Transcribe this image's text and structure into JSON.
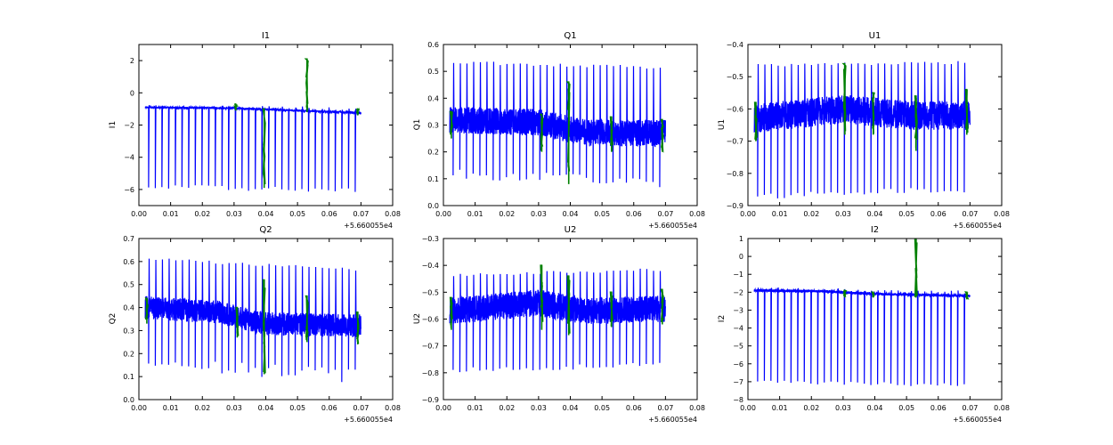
{
  "chart_data": [
    {
      "type": "line",
      "title": "I1",
      "ylabel": "I1",
      "xlabel": "",
      "x_offset_label": "+5.660055e4",
      "xlim": [
        0.0,
        0.08
      ],
      "ylim": [
        -7,
        3
      ],
      "x_ticks": [
        0.0,
        0.01,
        0.02,
        0.03,
        0.04,
        0.05,
        0.06,
        0.07,
        0.08
      ],
      "x_tick_labels": [
        "0.00",
        "0.01",
        "0.02",
        "0.03",
        "0.04",
        "0.05",
        "0.06",
        "0.07",
        "0.08"
      ],
      "y_ticks": [
        -6,
        -4,
        -2,
        0,
        2
      ],
      "y_tick_labels": [
        "−6",
        "−4",
        "−2",
        "0",
        "2"
      ],
      "x_start": 0.002,
      "x_end": 0.07,
      "spike_period": 0.0021,
      "series": [
        {
          "color": "#0000ff",
          "base": [
            [
              0.002,
              -0.9
            ],
            [
              0.03,
              -0.95
            ],
            [
              0.05,
              -1.1
            ],
            [
              0.07,
              -1.25
            ]
          ],
          "noise": 0.06,
          "spike_min": [
            -5.8,
            -6.1
          ],
          "spike_max": [
            -0.7,
            -0.9
          ]
        },
        {
          "color": "#008000",
          "events": [
            {
              "x": 0.0305,
              "lo": -1.1,
              "hi": -0.7
            },
            {
              "x": 0.0395,
              "lo": -5.9,
              "hi": -1.0
            },
            {
              "x": 0.053,
              "lo": -1.2,
              "hi": 2.1
            },
            {
              "x": 0.069,
              "lo": -1.4,
              "hi": -1.0
            }
          ]
        }
      ]
    },
    {
      "type": "line",
      "title": "Q1",
      "ylabel": "Q1",
      "xlabel": "",
      "x_offset_label": "+5.660055e4",
      "xlim": [
        0.0,
        0.08
      ],
      "ylim": [
        0.0,
        0.6
      ],
      "x_ticks": [
        0.0,
        0.01,
        0.02,
        0.03,
        0.04,
        0.05,
        0.06,
        0.07,
        0.08
      ],
      "x_tick_labels": [
        "0.00",
        "0.01",
        "0.02",
        "0.03",
        "0.04",
        "0.05",
        "0.06",
        "0.07",
        "0.08"
      ],
      "y_ticks": [
        0.0,
        0.1,
        0.2,
        0.3,
        0.4,
        0.5,
        0.6
      ],
      "y_tick_labels": [
        "0.0",
        "0.1",
        "0.2",
        "0.3",
        "0.4",
        "0.5",
        "0.6"
      ],
      "x_start": 0.002,
      "x_end": 0.07,
      "spike_period": 0.0021,
      "series": [
        {
          "color": "#0000ff",
          "base": [
            [
              0.002,
              0.32
            ],
            [
              0.03,
              0.31
            ],
            [
              0.045,
              0.27
            ],
            [
              0.07,
              0.27
            ]
          ],
          "noise": 0.05,
          "spike_min": [
            0.12,
            0.08
          ],
          "spike_max": [
            0.54,
            0.52
          ]
        },
        {
          "color": "#008000",
          "events": [
            {
              "x": 0.0025,
              "lo": 0.25,
              "hi": 0.35
            },
            {
              "x": 0.031,
              "lo": 0.2,
              "hi": 0.34
            },
            {
              "x": 0.0395,
              "lo": 0.08,
              "hi": 0.46
            },
            {
              "x": 0.053,
              "lo": 0.2,
              "hi": 0.33
            },
            {
              "x": 0.069,
              "lo": 0.2,
              "hi": 0.32
            }
          ]
        }
      ]
    },
    {
      "type": "line",
      "title": "U1",
      "ylabel": "U1",
      "xlabel": "",
      "x_offset_label": "+5.660055e4",
      "xlim": [
        0.0,
        0.08
      ],
      "ylim": [
        -0.9,
        -0.4
      ],
      "x_ticks": [
        0.0,
        0.01,
        0.02,
        0.03,
        0.04,
        0.05,
        0.06,
        0.07,
        0.08
      ],
      "x_tick_labels": [
        "0.00",
        "0.01",
        "0.02",
        "0.03",
        "0.04",
        "0.05",
        "0.06",
        "0.07",
        "0.08"
      ],
      "y_ticks": [
        -0.9,
        -0.8,
        -0.7,
        -0.6,
        -0.5,
        -0.4
      ],
      "y_tick_labels": [
        "−0.9",
        "−0.8",
        "−0.7",
        "−0.6",
        "−0.5",
        "−0.4"
      ],
      "x_start": 0.002,
      "x_end": 0.07,
      "spike_period": 0.0021,
      "series": [
        {
          "color": "#0000ff",
          "base": [
            [
              0.002,
              -0.63
            ],
            [
              0.03,
              -0.6
            ],
            [
              0.05,
              -0.62
            ],
            [
              0.07,
              -0.62
            ]
          ],
          "noise": 0.045,
          "spike_min": [
            -0.87,
            -0.85
          ],
          "spike_max": [
            -0.46,
            -0.45
          ]
        },
        {
          "color": "#008000",
          "events": [
            {
              "x": 0.0025,
              "lo": -0.7,
              "hi": -0.58
            },
            {
              "x": 0.0305,
              "lo": -0.68,
              "hi": -0.46
            },
            {
              "x": 0.0395,
              "lo": -0.68,
              "hi": -0.55
            },
            {
              "x": 0.053,
              "lo": -0.73,
              "hi": -0.56
            },
            {
              "x": 0.069,
              "lo": -0.68,
              "hi": -0.54
            }
          ]
        }
      ]
    },
    {
      "type": "line",
      "title": "Q2",
      "ylabel": "Q2",
      "xlabel": "",
      "x_offset_label": "+5.660055e4",
      "xlim": [
        0.0,
        0.08
      ],
      "ylim": [
        0.0,
        0.7
      ],
      "x_ticks": [
        0.0,
        0.01,
        0.02,
        0.03,
        0.04,
        0.05,
        0.06,
        0.07,
        0.08
      ],
      "x_tick_labels": [
        "0.00",
        "0.01",
        "0.02",
        "0.03",
        "0.04",
        "0.05",
        "0.06",
        "0.07",
        "0.08"
      ],
      "y_ticks": [
        0.0,
        0.1,
        0.2,
        0.3,
        0.4,
        0.5,
        0.6,
        0.7
      ],
      "y_tick_labels": [
        "0.0",
        "0.1",
        "0.2",
        "0.3",
        "0.4",
        "0.5",
        "0.6",
        "0.7"
      ],
      "x_start": 0.002,
      "x_end": 0.07,
      "spike_period": 0.0021,
      "series": [
        {
          "color": "#0000ff",
          "base": [
            [
              0.002,
              0.4
            ],
            [
              0.025,
              0.38
            ],
            [
              0.04,
              0.33
            ],
            [
              0.07,
              0.32
            ]
          ],
          "noise": 0.05,
          "spike_min": [
            0.16,
            0.1
          ],
          "spike_max": [
            0.62,
            0.57
          ]
        },
        {
          "color": "#008000",
          "events": [
            {
              "x": 0.0025,
              "lo": 0.33,
              "hi": 0.44
            },
            {
              "x": 0.031,
              "lo": 0.27,
              "hi": 0.4
            },
            {
              "x": 0.0395,
              "lo": 0.11,
              "hi": 0.52
            },
            {
              "x": 0.053,
              "lo": 0.25,
              "hi": 0.45
            },
            {
              "x": 0.069,
              "lo": 0.24,
              "hi": 0.38
            }
          ]
        }
      ]
    },
    {
      "type": "line",
      "title": "U2",
      "ylabel": "U2",
      "xlabel": "",
      "x_offset_label": "+5.660055e4",
      "xlim": [
        0.0,
        0.08
      ],
      "ylim": [
        -0.9,
        -0.3
      ],
      "x_ticks": [
        0.0,
        0.01,
        0.02,
        0.03,
        0.04,
        0.05,
        0.06,
        0.07,
        0.08
      ],
      "x_tick_labels": [
        "0.00",
        "0.01",
        "0.02",
        "0.03",
        "0.04",
        "0.05",
        "0.06",
        "0.07",
        "0.08"
      ],
      "y_ticks": [
        -0.9,
        -0.8,
        -0.7,
        -0.6,
        -0.5,
        -0.4,
        -0.3
      ],
      "y_tick_labels": [
        "−0.9",
        "−0.8",
        "−0.7",
        "−0.6",
        "−0.5",
        "−0.4",
        "−0.3"
      ],
      "x_start": 0.002,
      "x_end": 0.07,
      "spike_period": 0.0021,
      "series": [
        {
          "color": "#0000ff",
          "base": [
            [
              0.002,
              -0.57
            ],
            [
              0.03,
              -0.54
            ],
            [
              0.045,
              -0.57
            ],
            [
              0.07,
              -0.56
            ]
          ],
          "noise": 0.05,
          "spike_min": [
            -0.79,
            -0.77
          ],
          "spike_max": [
            -0.43,
            -0.41
          ]
        },
        {
          "color": "#008000",
          "events": [
            {
              "x": 0.0025,
              "lo": -0.64,
              "hi": -0.52
            },
            {
              "x": 0.031,
              "lo": -0.64,
              "hi": -0.4
            },
            {
              "x": 0.0395,
              "lo": -0.66,
              "hi": -0.44
            },
            {
              "x": 0.053,
              "lo": -0.63,
              "hi": -0.5
            },
            {
              "x": 0.069,
              "lo": -0.62,
              "hi": -0.49
            }
          ]
        }
      ]
    },
    {
      "type": "line",
      "title": "I2",
      "ylabel": "I2",
      "xlabel": "",
      "x_offset_label": "+5.660055e4",
      "xlim": [
        0.0,
        0.08
      ],
      "ylim": [
        -8,
        1
      ],
      "x_ticks": [
        0.0,
        0.01,
        0.02,
        0.03,
        0.04,
        0.05,
        0.06,
        0.07,
        0.08
      ],
      "x_tick_labels": [
        "0.00",
        "0.01",
        "0.02",
        "0.03",
        "0.04",
        "0.05",
        "0.06",
        "0.07",
        "0.08"
      ],
      "y_ticks": [
        -8,
        -7,
        -6,
        -5,
        -4,
        -3,
        -2,
        -1,
        0,
        1
      ],
      "y_tick_labels": [
        "−8",
        "−7",
        "−6",
        "−5",
        "−4",
        "−3",
        "−2",
        "−1",
        "0",
        "1"
      ],
      "x_start": 0.002,
      "x_end": 0.07,
      "spike_period": 0.0021,
      "series": [
        {
          "color": "#0000ff",
          "base": [
            [
              0.002,
              -1.9
            ],
            [
              0.025,
              -1.95
            ],
            [
              0.04,
              -2.1
            ],
            [
              0.07,
              -2.2
            ]
          ],
          "noise": 0.07,
          "spike_min": [
            -7.0,
            -7.2
          ],
          "spike_max": [
            -1.7,
            -1.9
          ]
        },
        {
          "color": "#008000",
          "events": [
            {
              "x": 0.0305,
              "lo": -2.3,
              "hi": -1.9
            },
            {
              "x": 0.0395,
              "lo": -2.3,
              "hi": -2.0
            },
            {
              "x": 0.053,
              "lo": -2.3,
              "hi": 1.0
            },
            {
              "x": 0.069,
              "lo": -2.4,
              "hi": -2.0
            }
          ]
        }
      ]
    }
  ]
}
